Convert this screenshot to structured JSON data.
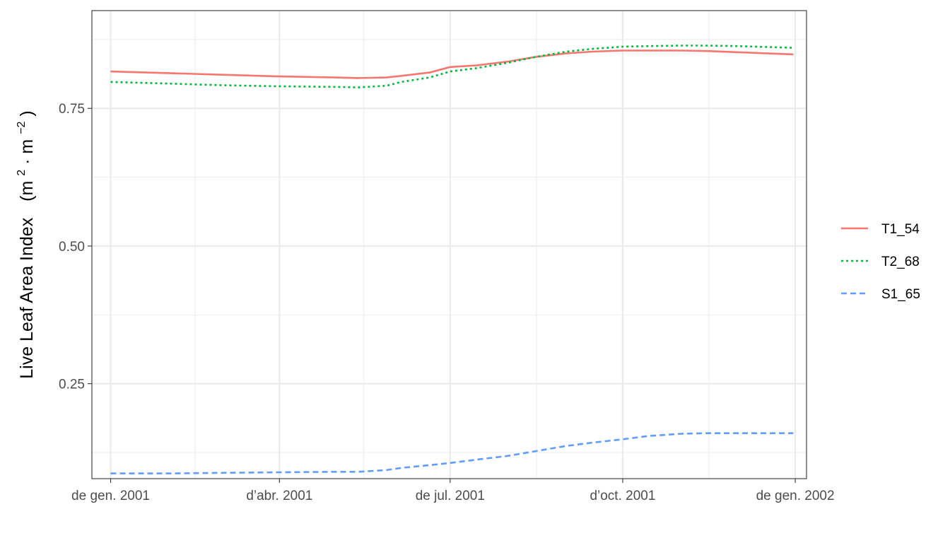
{
  "chart_data": {
    "type": "line",
    "xlabel": "",
    "ylabel": {
      "text": "Live Leaf Area Index",
      "unit_open": "(m",
      "unit_sup1": "2",
      "unit_mid": " · m",
      "unit_sup2": "−2",
      "unit_close": ")"
    },
    "xlim": [
      "2000-12-22",
      "2002-01-07"
    ],
    "ylim": [
      0.0775,
      0.9275
    ],
    "x_ticks": [
      {
        "date": "2001-01-01",
        "label": "de gen. 2001"
      },
      {
        "date": "2001-04-01",
        "label": "d’abr. 2001"
      },
      {
        "date": "2001-07-01",
        "label": "de jul. 2001"
      },
      {
        "date": "2001-10-01",
        "label": "d’oct. 2001"
      },
      {
        "date": "2002-01-01",
        "label": "de gen. 2002"
      }
    ],
    "x_minor_ticks": [
      "2001-02-15",
      "2001-05-16",
      "2001-08-16",
      "2001-11-16"
    ],
    "y_ticks": [
      {
        "value": 0.25,
        "label": "0.25"
      },
      {
        "value": 0.5,
        "label": "0.50"
      },
      {
        "value": 0.75,
        "label": "0.75"
      }
    ],
    "y_minor_ticks": [
      0.125,
      0.375,
      0.625,
      0.875
    ],
    "grid": true,
    "legend_position": "right",
    "series": [
      {
        "name": "T1_54",
        "color": "#F8766D",
        "dash": "solid",
        "x": [
          "2001-01-01",
          "2001-02-01",
          "2001-03-01",
          "2001-04-01",
          "2001-05-01",
          "2001-05-13",
          "2001-05-28",
          "2001-06-05",
          "2001-06-20",
          "2001-07-01",
          "2001-07-15",
          "2001-08-01",
          "2001-08-15",
          "2001-09-01",
          "2001-09-15",
          "2001-10-01",
          "2001-10-15",
          "2001-11-01",
          "2001-11-15",
          "2001-12-01",
          "2001-12-31"
        ],
        "y": [
          0.817,
          0.814,
          0.811,
          0.808,
          0.806,
          0.805,
          0.806,
          0.809,
          0.815,
          0.825,
          0.828,
          0.835,
          0.843,
          0.85,
          0.853,
          0.855,
          0.855,
          0.855,
          0.854,
          0.852,
          0.848
        ]
      },
      {
        "name": "T2_68",
        "color": "#00BA38",
        "dash": "dotted",
        "x": [
          "2001-01-01",
          "2001-02-01",
          "2001-03-01",
          "2001-04-01",
          "2001-05-01",
          "2001-05-13",
          "2001-05-28",
          "2001-06-05",
          "2001-06-20",
          "2001-07-01",
          "2001-07-15",
          "2001-08-01",
          "2001-08-15",
          "2001-09-01",
          "2001-09-15",
          "2001-10-01",
          "2001-10-15",
          "2001-11-01",
          "2001-11-15",
          "2001-12-01",
          "2001-12-31"
        ],
        "y": [
          0.798,
          0.795,
          0.792,
          0.79,
          0.789,
          0.788,
          0.791,
          0.798,
          0.806,
          0.817,
          0.823,
          0.833,
          0.843,
          0.853,
          0.858,
          0.862,
          0.863,
          0.864,
          0.864,
          0.863,
          0.86
        ]
      },
      {
        "name": "S1_65",
        "color": "#619CFF",
        "dash": "dashed",
        "x": [
          "2001-01-01",
          "2001-02-01",
          "2001-03-01",
          "2001-04-01",
          "2001-05-01",
          "2001-05-13",
          "2001-05-28",
          "2001-06-05",
          "2001-06-20",
          "2001-07-01",
          "2001-07-15",
          "2001-08-01",
          "2001-08-15",
          "2001-09-01",
          "2001-09-15",
          "2001-10-01",
          "2001-10-15",
          "2001-11-01",
          "2001-11-15",
          "2001-12-01",
          "2001-12-31"
        ],
        "y": [
          0.087,
          0.087,
          0.088,
          0.089,
          0.09,
          0.09,
          0.093,
          0.097,
          0.102,
          0.106,
          0.112,
          0.119,
          0.127,
          0.137,
          0.143,
          0.149,
          0.155,
          0.159,
          0.16,
          0.16,
          0.16
        ]
      }
    ]
  }
}
